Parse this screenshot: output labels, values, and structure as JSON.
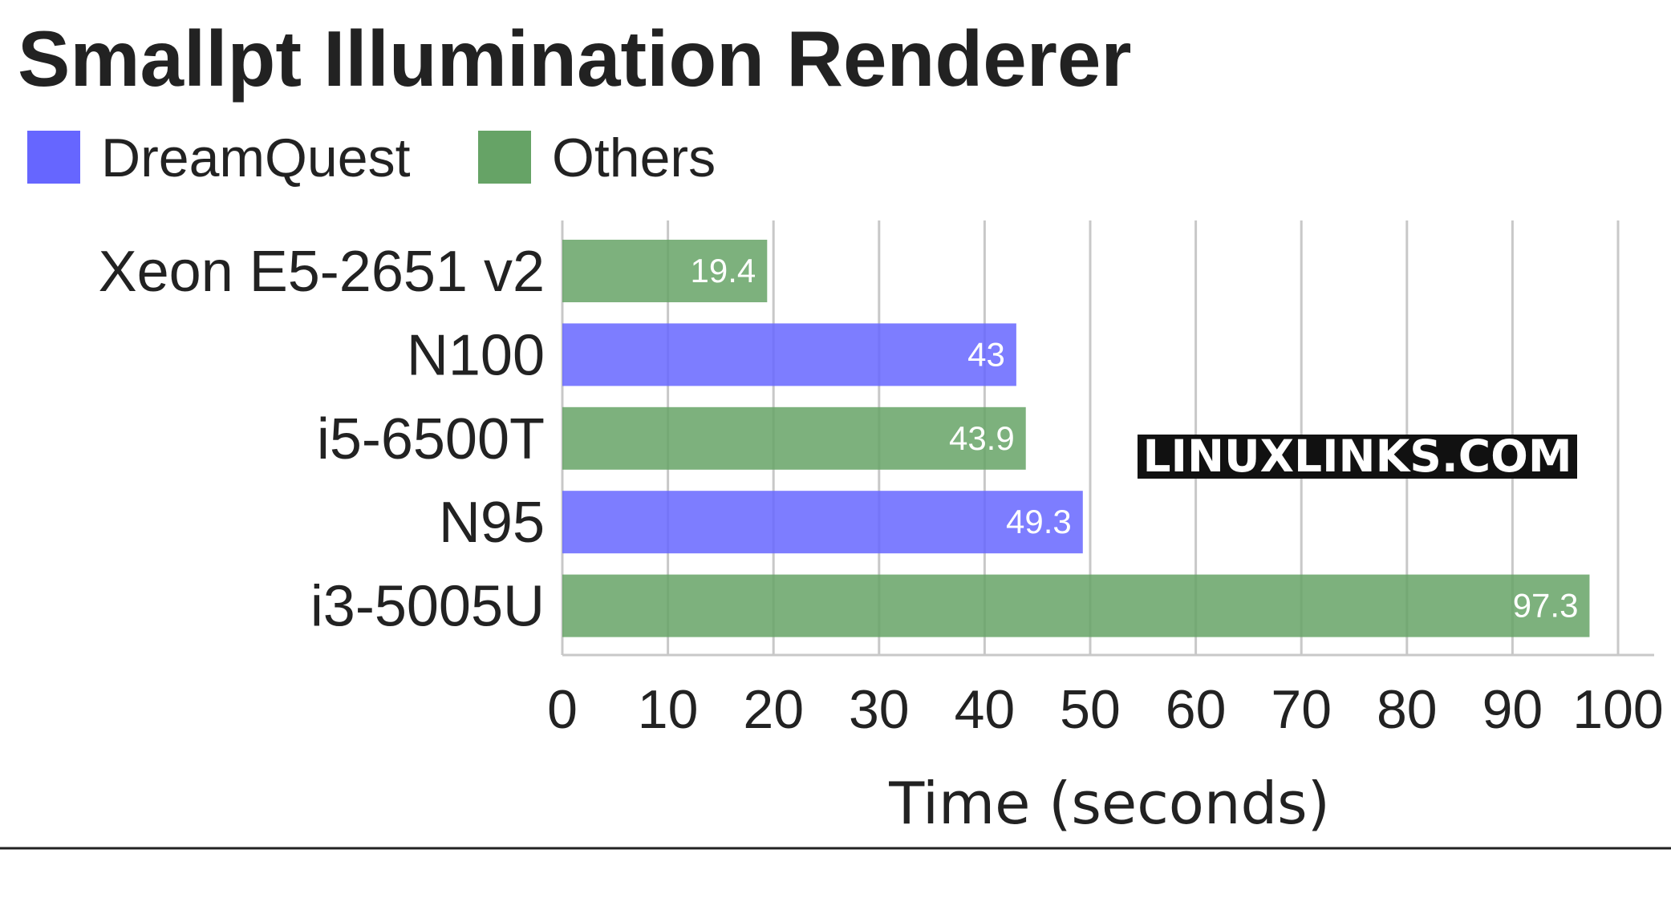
{
  "watermark": "LINUXLINKS.COM",
  "colors": {
    "DreamQuest": "#6666ff",
    "Others": "#66a366",
    "text": "#222222",
    "grid": "#c8c8c8",
    "value_label": "#ffffff"
  },
  "chart_data": {
    "type": "bar",
    "orientation": "horizontal",
    "title": "Smallpt Illumination Renderer",
    "xlabel": "Time (seconds)",
    "ylabel": "",
    "xlim": [
      0,
      100
    ],
    "xticks": [
      0,
      10,
      20,
      30,
      40,
      50,
      60,
      70,
      80,
      90,
      100
    ],
    "grid": true,
    "legend": {
      "placement": "top-left",
      "entries": [
        "DreamQuest",
        "Others"
      ]
    },
    "categories": [
      "Xeon E5-2651 v2",
      "N100",
      "i5-6500T",
      "N95",
      "i3-5005U"
    ],
    "values": [
      19.4,
      43,
      43.9,
      49.3,
      97.3
    ],
    "value_labels": [
      "19.4",
      "43",
      "43.9",
      "49.3",
      "97.3"
    ],
    "groups": [
      "Others",
      "DreamQuest",
      "Others",
      "DreamQuest",
      "Others"
    ]
  }
}
